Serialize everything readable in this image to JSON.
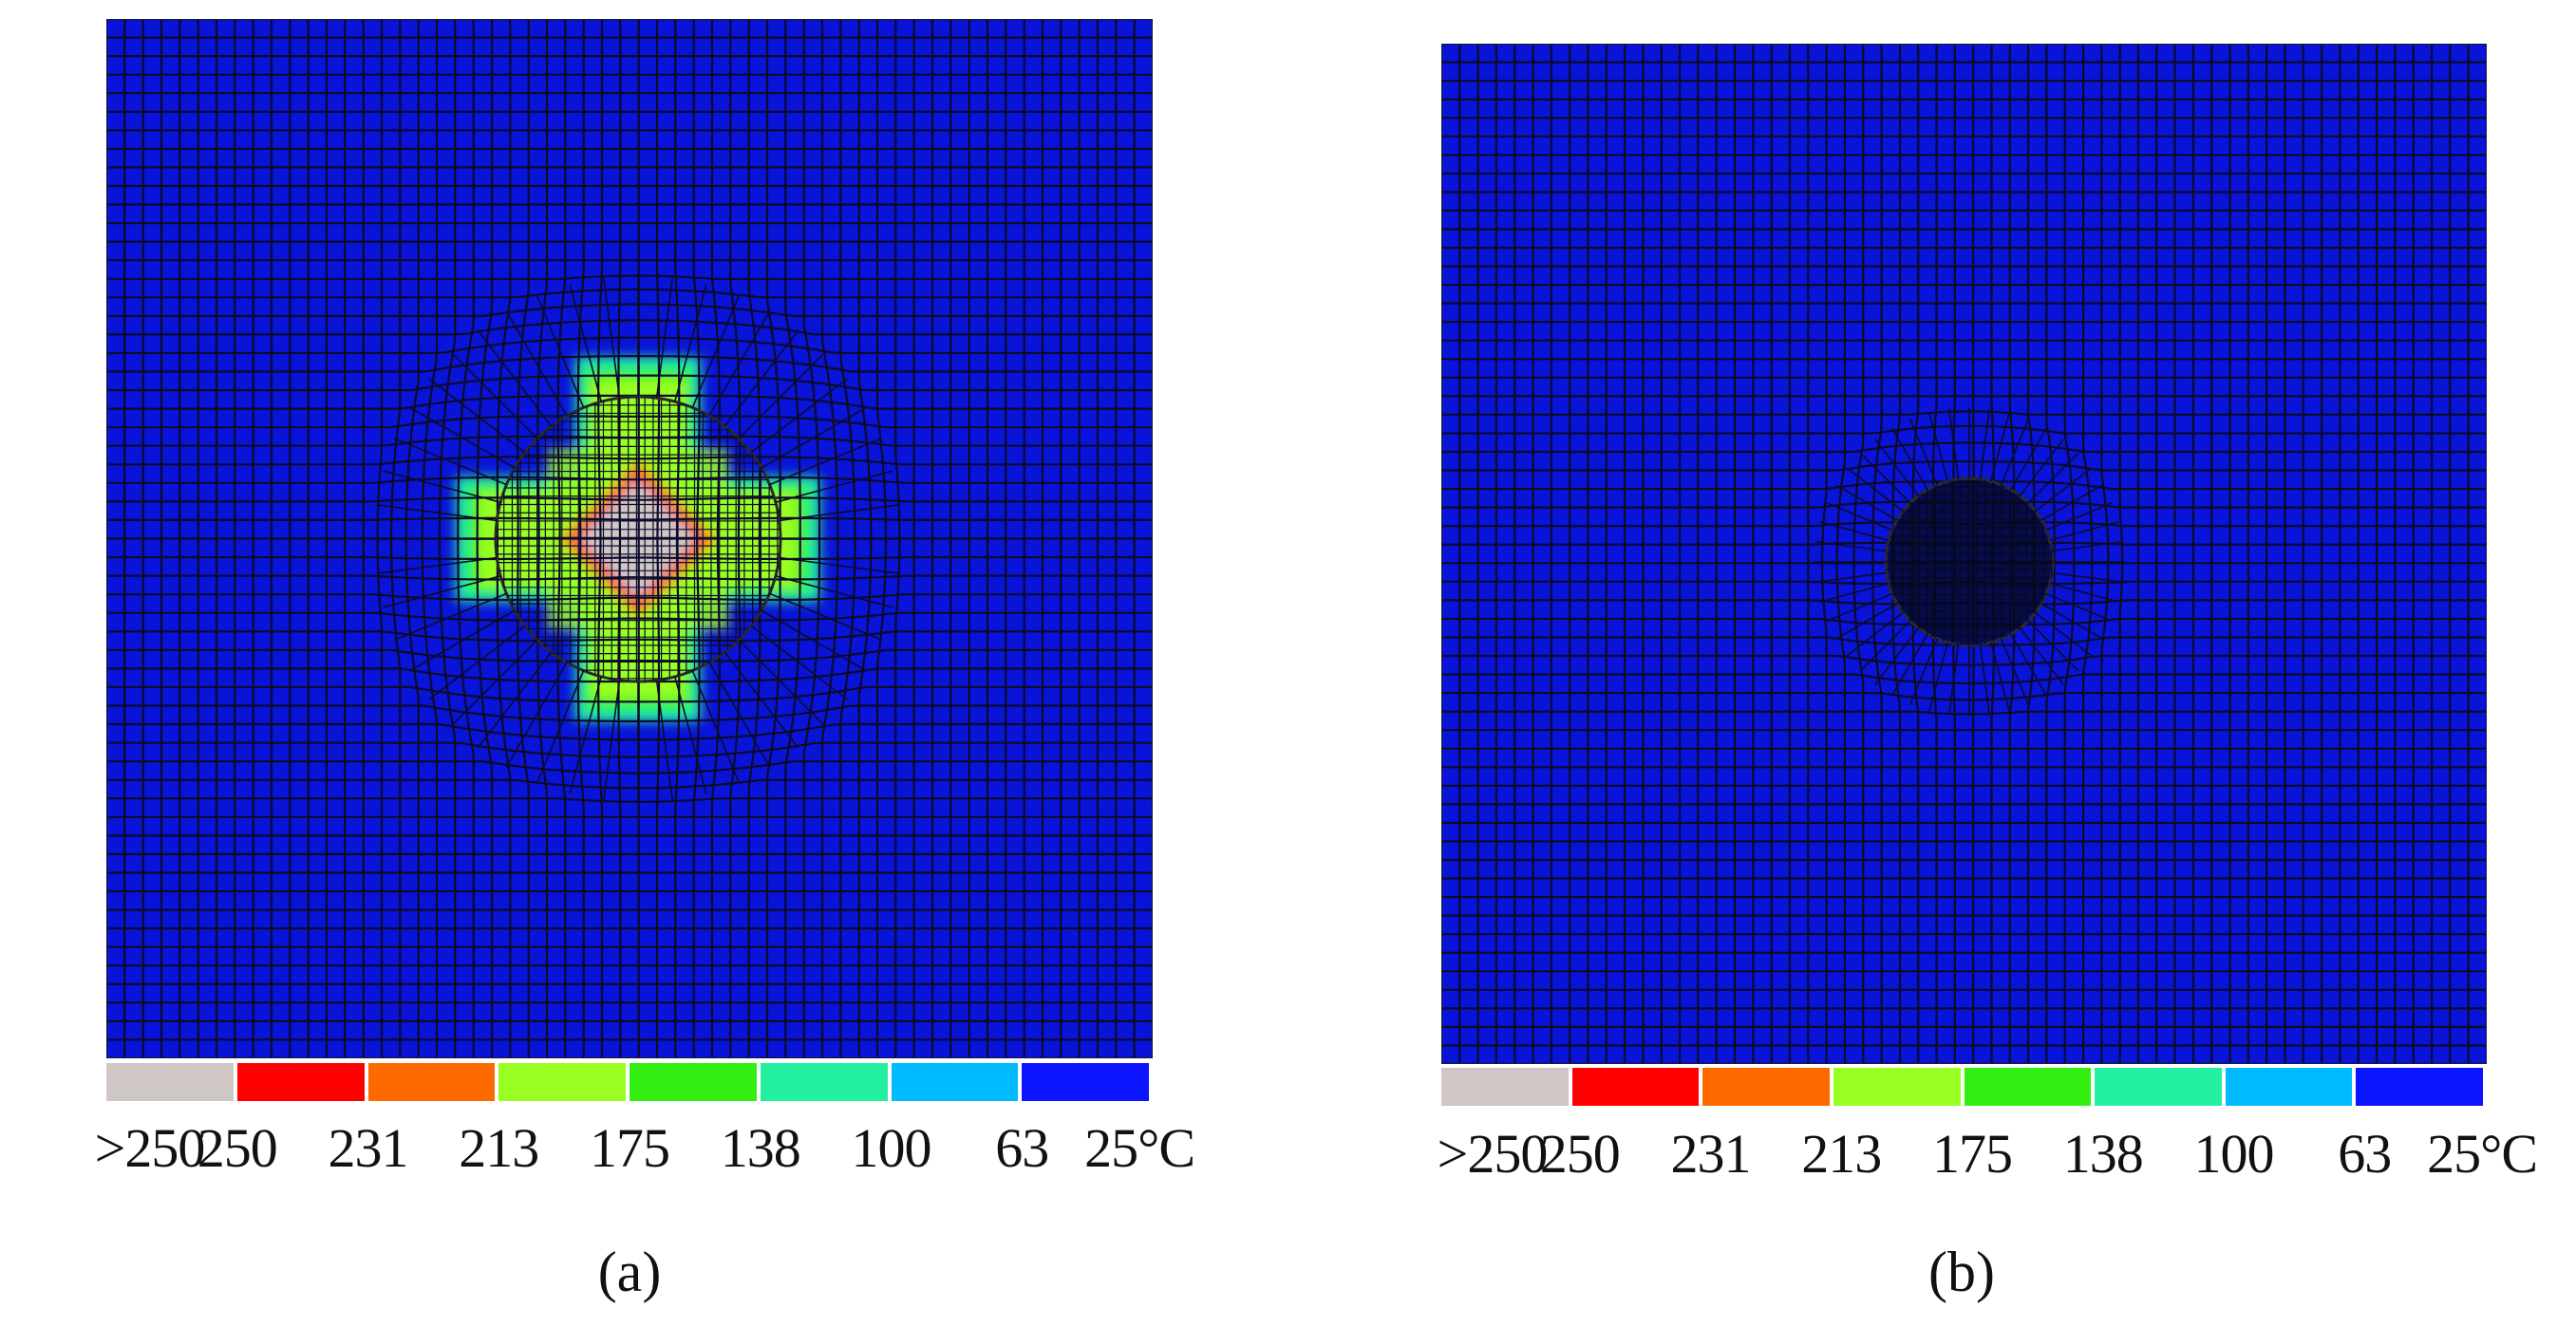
{
  "colors": {
    "gt250": "#cfc6c6",
    "c250": "#ff0000",
    "c231": "#ff6a00",
    "c213": "#99ff22",
    "c175": "#33ee11",
    "c138": "#22f0a0",
    "c100": "#00bbff",
    "c63": "#0a14ff",
    "background": "#0a14d8",
    "mesh": "#0b0b2a"
  },
  "legend": {
    "swatch_colors": [
      "#cfc6c6",
      "#ff0000",
      "#ff6a00",
      "#99ff22",
      "#33ee11",
      "#22f0a0",
      "#00bbff",
      "#0a14ff"
    ],
    "tick_labels": [
      ">250",
      "250",
      "231",
      "213",
      "175",
      "138",
      "100",
      "63",
      "25°C"
    ]
  },
  "panels": [
    {
      "caption": "(a)",
      "field": "cross-shaped heated zone around circular inclusion",
      "core_level": ">250",
      "rim_level": "250",
      "arms_level": "213",
      "fringe_level": "138"
    },
    {
      "caption": "(b)",
      "field": "uniform",
      "core_level": "25°C"
    }
  ]
}
